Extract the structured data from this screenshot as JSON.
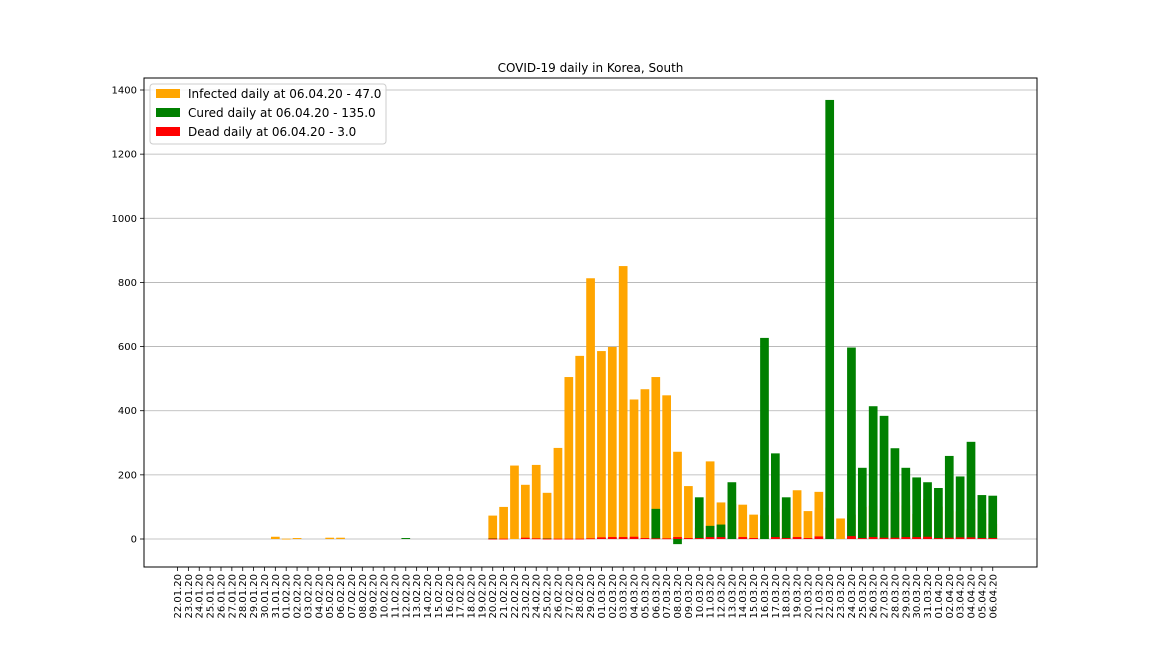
{
  "chart_data": {
    "type": "bar",
    "title": "COVID-19 daily in Korea, South",
    "xlabel": "",
    "ylabel": "",
    "ylim": [
      -90,
      1400
    ],
    "yticks": [
      0,
      200,
      400,
      600,
      800,
      1000,
      1200,
      1400
    ],
    "grid": "horizontal",
    "legend_position": "top-left",
    "categories": [
      "22.01.20",
      "23.01.20",
      "24.01.20",
      "25.01.20",
      "26.01.20",
      "27.01.20",
      "28.01.20",
      "29.01.20",
      "30.01.20",
      "31.01.20",
      "01.02.20",
      "02.02.20",
      "03.02.20",
      "04.02.20",
      "05.02.20",
      "06.02.20",
      "07.02.20",
      "08.02.20",
      "09.02.20",
      "10.02.20",
      "11.02.20",
      "12.02.20",
      "13.02.20",
      "14.02.20",
      "15.02.20",
      "16.02.20",
      "17.02.20",
      "18.02.20",
      "19.02.20",
      "20.02.20",
      "21.02.20",
      "22.02.20",
      "23.02.20",
      "24.02.20",
      "25.02.20",
      "26.02.20",
      "27.02.20",
      "28.02.20",
      "29.02.20",
      "01.03.20",
      "02.03.20",
      "03.03.20",
      "04.03.20",
      "05.03.20",
      "06.03.20",
      "07.03.20",
      "08.03.20",
      "09.03.20",
      "10.03.20",
      "11.03.20",
      "12.03.20",
      "13.03.20",
      "14.03.20",
      "15.03.20",
      "16.03.20",
      "17.03.20",
      "18.03.20",
      "19.03.20",
      "20.03.20",
      "21.03.20",
      "22.03.20",
      "23.03.20",
      "24.03.20",
      "25.03.20",
      "26.03.20",
      "27.03.20",
      "28.03.20",
      "29.03.20",
      "30.03.20",
      "31.03.20",
      "01.04.20",
      "02.04.20",
      "03.04.20",
      "04.04.20",
      "05.04.20",
      "06.04.20"
    ],
    "series": [
      {
        "name": "Infected daily at 06.04.20 - 47.0",
        "color": "#ffa500",
        "values": [
          0,
          0,
          0,
          0,
          0,
          0,
          0,
          0,
          0,
          7,
          1,
          3,
          0,
          0,
          4,
          4,
          0,
          0,
          0,
          0,
          0,
          0,
          0,
          0,
          0,
          0,
          0,
          0,
          0,
          73,
          100,
          229,
          169,
          231,
          144,
          284,
          505,
          571,
          813,
          586,
          599,
          851,
          435,
          467,
          505,
          448,
          272,
          165,
          35,
          242,
          114,
          110,
          107,
          76,
          74,
          84,
          93,
          152,
          87,
          147,
          98,
          64,
          76,
          100,
          104,
          91,
          146,
          105,
          78,
          125,
          101,
          89,
          86,
          94,
          81,
          47
        ]
      },
      {
        "name": "Cured daily at 06.04.20 - 135.0",
        "color": "#008000",
        "values": [
          0,
          0,
          0,
          0,
          0,
          0,
          0,
          0,
          0,
          0,
          0,
          0,
          0,
          0,
          0,
          0,
          0,
          0,
          0,
          0,
          0,
          3,
          0,
          0,
          0,
          0,
          0,
          0,
          0,
          2,
          0,
          0,
          0,
          0,
          2,
          0,
          0,
          0,
          0,
          3,
          4,
          0,
          0,
          0,
          94,
          0,
          -16,
          0,
          130,
          41,
          45,
          177,
          0,
          0,
          627,
          267,
          130,
          0,
          0,
          0,
          1369,
          0,
          597,
          222,
          414,
          384,
          283,
          222,
          192,
          177,
          159,
          259,
          195,
          303,
          137,
          135
        ]
      },
      {
        "name": "Dead daily at 06.04.20 - 3.0",
        "color": "#ff0000",
        "values": [
          0,
          0,
          0,
          0,
          0,
          0,
          0,
          0,
          0,
          0,
          0,
          0,
          0,
          0,
          0,
          0,
          0,
          0,
          0,
          0,
          0,
          0,
          0,
          0,
          0,
          0,
          0,
          0,
          0,
          1,
          1,
          0,
          4,
          2,
          1,
          1,
          1,
          1,
          2,
          5,
          6,
          6,
          7,
          3,
          2,
          2,
          6,
          3,
          3,
          6,
          6,
          0,
          6,
          3,
          0,
          6,
          3,
          6,
          3,
          8,
          0,
          0,
          9,
          3,
          6,
          4,
          4,
          6,
          6,
          7,
          3,
          4,
          5,
          5,
          3,
          3
        ]
      }
    ]
  }
}
